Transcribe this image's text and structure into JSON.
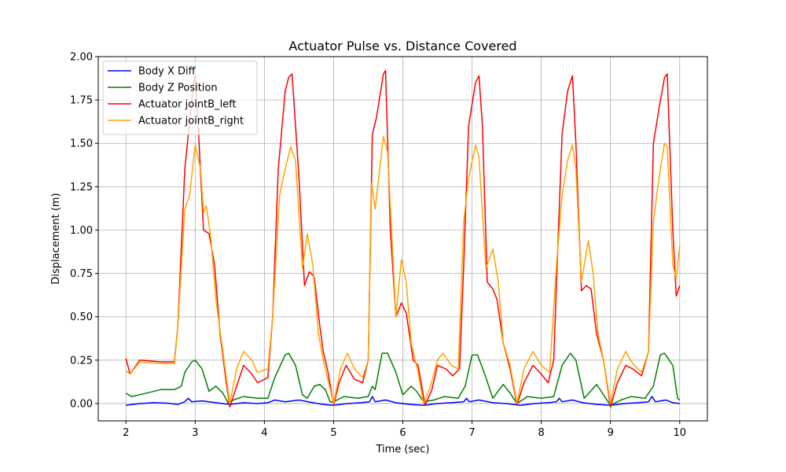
{
  "chart_data": {
    "type": "line",
    "title": "Actuator Pulse vs. Distance Covered",
    "xlabel": "Time (sec)",
    "ylabel": "Displacement (m)",
    "xlim": [
      1.6,
      10.4
    ],
    "ylim": [
      -0.1,
      2.0
    ],
    "xticks": [
      2,
      3,
      4,
      5,
      6,
      7,
      8,
      9,
      10
    ],
    "xtick_labels": [
      "2",
      "3",
      "4",
      "5",
      "6",
      "7",
      "8",
      "9",
      "10"
    ],
    "yticks": [
      0.0,
      0.25,
      0.5,
      0.75,
      1.0,
      1.25,
      1.5,
      1.75,
      2.0
    ],
    "ytick_labels": [
      "0.00",
      "0.25",
      "0.50",
      "0.75",
      "1.00",
      "1.25",
      "1.50",
      "1.75",
      "2.00"
    ],
    "grid": true,
    "legend_position": "top-left",
    "series": [
      {
        "name": "Body X Diff",
        "color": "#0000ff",
        "points": [
          [
            2.0,
            -0.01
          ],
          [
            2.2,
            0.0
          ],
          [
            2.4,
            0.005
          ],
          [
            2.6,
            0.002
          ],
          [
            2.75,
            -0.005
          ],
          [
            2.85,
            0.01
          ],
          [
            2.9,
            0.03
          ],
          [
            2.95,
            0.01
          ],
          [
            3.1,
            0.015
          ],
          [
            3.3,
            0.005
          ],
          [
            3.5,
            -0.005
          ],
          [
            3.7,
            0.005
          ],
          [
            3.9,
            0.0
          ],
          [
            4.05,
            0.005
          ],
          [
            4.15,
            0.02
          ],
          [
            4.3,
            0.01
          ],
          [
            4.5,
            0.02
          ],
          [
            4.7,
            0.005
          ],
          [
            4.85,
            -0.005
          ],
          [
            5.0,
            -0.01
          ],
          [
            5.2,
            0.0
          ],
          [
            5.4,
            0.005
          ],
          [
            5.52,
            0.01
          ],
          [
            5.56,
            0.04
          ],
          [
            5.6,
            0.01
          ],
          [
            5.75,
            0.02
          ],
          [
            5.9,
            0.005
          ],
          [
            6.1,
            -0.005
          ],
          [
            6.3,
            -0.01
          ],
          [
            6.5,
            0.0
          ],
          [
            6.7,
            0.005
          ],
          [
            6.88,
            0.01
          ],
          [
            6.92,
            0.03
          ],
          [
            6.96,
            0.01
          ],
          [
            7.1,
            0.02
          ],
          [
            7.3,
            0.005
          ],
          [
            7.5,
            0.0
          ],
          [
            7.7,
            -0.01
          ],
          [
            7.9,
            0.0
          ],
          [
            8.1,
            0.005
          ],
          [
            8.22,
            0.01
          ],
          [
            8.26,
            0.03
          ],
          [
            8.3,
            0.01
          ],
          [
            8.45,
            0.02
          ],
          [
            8.6,
            0.005
          ],
          [
            8.8,
            -0.005
          ],
          [
            9.0,
            -0.01
          ],
          [
            9.2,
            0.0
          ],
          [
            9.4,
            0.005
          ],
          [
            9.55,
            0.01
          ],
          [
            9.6,
            0.04
          ],
          [
            9.65,
            0.01
          ],
          [
            9.8,
            0.02
          ],
          [
            9.9,
            0.005
          ],
          [
            10.0,
            0.0
          ]
        ]
      },
      {
        "name": "Body Z Position",
        "color": "#008000",
        "points": [
          [
            2.0,
            0.06
          ],
          [
            2.08,
            0.04
          ],
          [
            2.3,
            0.06
          ],
          [
            2.5,
            0.08
          ],
          [
            2.7,
            0.08
          ],
          [
            2.8,
            0.1
          ],
          [
            2.85,
            0.18
          ],
          [
            2.95,
            0.24
          ],
          [
            3.0,
            0.25
          ],
          [
            3.1,
            0.2
          ],
          [
            3.2,
            0.07
          ],
          [
            3.3,
            0.1
          ],
          [
            3.4,
            0.06
          ],
          [
            3.48,
            0.0
          ],
          [
            3.55,
            0.02
          ],
          [
            3.7,
            0.04
          ],
          [
            3.9,
            0.03
          ],
          [
            4.05,
            0.03
          ],
          [
            4.15,
            0.15
          ],
          [
            4.3,
            0.28
          ],
          [
            4.35,
            0.29
          ],
          [
            4.45,
            0.22
          ],
          [
            4.55,
            0.05
          ],
          [
            4.62,
            0.03
          ],
          [
            4.72,
            0.1
          ],
          [
            4.8,
            0.11
          ],
          [
            4.88,
            0.08
          ],
          [
            4.95,
            0.01
          ],
          [
            5.0,
            0.01
          ],
          [
            5.15,
            0.04
          ],
          [
            5.35,
            0.03
          ],
          [
            5.5,
            0.04
          ],
          [
            5.56,
            0.1
          ],
          [
            5.6,
            0.08
          ],
          [
            5.7,
            0.29
          ],
          [
            5.78,
            0.29
          ],
          [
            5.9,
            0.18
          ],
          [
            6.0,
            0.05
          ],
          [
            6.12,
            0.1
          ],
          [
            6.2,
            0.07
          ],
          [
            6.3,
            0.01
          ],
          [
            6.45,
            0.02
          ],
          [
            6.6,
            0.04
          ],
          [
            6.8,
            0.03
          ],
          [
            6.9,
            0.1
          ],
          [
            7.0,
            0.28
          ],
          [
            7.08,
            0.28
          ],
          [
            7.2,
            0.15
          ],
          [
            7.3,
            0.03
          ],
          [
            7.45,
            0.11
          ],
          [
            7.55,
            0.06
          ],
          [
            7.65,
            0.0
          ],
          [
            7.8,
            0.04
          ],
          [
            8.0,
            0.03
          ],
          [
            8.18,
            0.04
          ],
          [
            8.3,
            0.22
          ],
          [
            8.42,
            0.29
          ],
          [
            8.5,
            0.25
          ],
          [
            8.62,
            0.03
          ],
          [
            8.8,
            0.11
          ],
          [
            8.9,
            0.05
          ],
          [
            9.0,
            -0.01
          ],
          [
            9.15,
            0.02
          ],
          [
            9.3,
            0.04
          ],
          [
            9.5,
            0.03
          ],
          [
            9.62,
            0.1
          ],
          [
            9.72,
            0.28
          ],
          [
            9.78,
            0.29
          ],
          [
            9.9,
            0.22
          ],
          [
            9.97,
            0.03
          ],
          [
            10.0,
            0.02
          ]
        ]
      },
      {
        "name": "Actuator jointB_left",
        "color": "#ff0000",
        "points": [
          [
            2.0,
            0.26
          ],
          [
            2.06,
            0.17
          ],
          [
            2.2,
            0.25
          ],
          [
            2.5,
            0.24
          ],
          [
            2.7,
            0.24
          ],
          [
            2.75,
            0.45
          ],
          [
            2.85,
            1.35
          ],
          [
            2.95,
            1.75
          ],
          [
            3.0,
            1.9
          ],
          [
            3.05,
            1.55
          ],
          [
            3.12,
            1.0
          ],
          [
            3.2,
            0.98
          ],
          [
            3.28,
            0.8
          ],
          [
            3.36,
            0.4
          ],
          [
            3.44,
            0.15
          ],
          [
            3.5,
            -0.02
          ],
          [
            3.6,
            0.1
          ],
          [
            3.7,
            0.22
          ],
          [
            3.82,
            0.17
          ],
          [
            3.9,
            0.12
          ],
          [
            4.05,
            0.15
          ],
          [
            4.12,
            0.5
          ],
          [
            4.2,
            1.35
          ],
          [
            4.3,
            1.8
          ],
          [
            4.35,
            1.88
          ],
          [
            4.4,
            1.9
          ],
          [
            4.5,
            1.3
          ],
          [
            4.58,
            0.68
          ],
          [
            4.65,
            0.76
          ],
          [
            4.72,
            0.73
          ],
          [
            4.8,
            0.45
          ],
          [
            4.85,
            0.3
          ],
          [
            4.92,
            0.18
          ],
          [
            5.0,
            -0.01
          ],
          [
            5.08,
            0.12
          ],
          [
            5.18,
            0.22
          ],
          [
            5.3,
            0.14
          ],
          [
            5.42,
            0.12
          ],
          [
            5.5,
            0.25
          ],
          [
            5.56,
            1.55
          ],
          [
            5.62,
            1.65
          ],
          [
            5.72,
            1.9
          ],
          [
            5.75,
            1.92
          ],
          [
            5.82,
            1.0
          ],
          [
            5.9,
            0.5
          ],
          [
            5.98,
            0.58
          ],
          [
            6.05,
            0.52
          ],
          [
            6.15,
            0.25
          ],
          [
            6.22,
            0.22
          ],
          [
            6.32,
            -0.01
          ],
          [
            6.42,
            0.08
          ],
          [
            6.5,
            0.22
          ],
          [
            6.62,
            0.2
          ],
          [
            6.72,
            0.16
          ],
          [
            6.82,
            0.2
          ],
          [
            6.88,
            0.8
          ],
          [
            6.95,
            1.6
          ],
          [
            7.05,
            1.85
          ],
          [
            7.1,
            1.89
          ],
          [
            7.15,
            1.6
          ],
          [
            7.22,
            0.7
          ],
          [
            7.3,
            0.66
          ],
          [
            7.36,
            0.6
          ],
          [
            7.45,
            0.35
          ],
          [
            7.55,
            0.2
          ],
          [
            7.65,
            -0.01
          ],
          [
            7.75,
            0.12
          ],
          [
            7.88,
            0.22
          ],
          [
            8.0,
            0.17
          ],
          [
            8.1,
            0.12
          ],
          [
            8.18,
            0.25
          ],
          [
            8.22,
            0.7
          ],
          [
            8.3,
            1.55
          ],
          [
            8.38,
            1.8
          ],
          [
            8.45,
            1.89
          ],
          [
            8.5,
            1.5
          ],
          [
            8.58,
            0.65
          ],
          [
            8.65,
            0.68
          ],
          [
            8.72,
            0.66
          ],
          [
            8.8,
            0.4
          ],
          [
            8.9,
            0.25
          ],
          [
            9.0,
            -0.02
          ],
          [
            9.1,
            0.12
          ],
          [
            9.22,
            0.22
          ],
          [
            9.32,
            0.2
          ],
          [
            9.45,
            0.16
          ],
          [
            9.55,
            0.3
          ],
          [
            9.62,
            1.5
          ],
          [
            9.7,
            1.7
          ],
          [
            9.78,
            1.88
          ],
          [
            9.82,
            1.9
          ],
          [
            9.9,
            1.0
          ],
          [
            9.95,
            0.62
          ],
          [
            10.0,
            0.68
          ]
        ]
      },
      {
        "name": "Actuator jointB_right",
        "color": "#ffa500",
        "points": [
          [
            2.0,
            0.19
          ],
          [
            2.06,
            0.17
          ],
          [
            2.2,
            0.24
          ],
          [
            2.5,
            0.23
          ],
          [
            2.7,
            0.23
          ],
          [
            2.75,
            0.45
          ],
          [
            2.85,
            1.12
          ],
          [
            2.92,
            1.2
          ],
          [
            3.0,
            1.49
          ],
          [
            3.08,
            1.35
          ],
          [
            3.12,
            1.1
          ],
          [
            3.16,
            1.14
          ],
          [
            3.22,
            0.98
          ],
          [
            3.3,
            0.6
          ],
          [
            3.4,
            0.3
          ],
          [
            3.5,
            0.0
          ],
          [
            3.6,
            0.2
          ],
          [
            3.7,
            0.3
          ],
          [
            3.82,
            0.25
          ],
          [
            3.9,
            0.18
          ],
          [
            4.05,
            0.2
          ],
          [
            4.12,
            0.5
          ],
          [
            4.22,
            1.2
          ],
          [
            4.3,
            1.35
          ],
          [
            4.38,
            1.48
          ],
          [
            4.45,
            1.4
          ],
          [
            4.55,
            0.78
          ],
          [
            4.62,
            0.98
          ],
          [
            4.7,
            0.8
          ],
          [
            4.78,
            0.4
          ],
          [
            4.85,
            0.25
          ],
          [
            5.0,
            0.0
          ],
          [
            5.1,
            0.2
          ],
          [
            5.2,
            0.29
          ],
          [
            5.3,
            0.2
          ],
          [
            5.42,
            0.15
          ],
          [
            5.5,
            0.25
          ],
          [
            5.55,
            1.27
          ],
          [
            5.6,
            1.12
          ],
          [
            5.65,
            1.3
          ],
          [
            5.72,
            1.54
          ],
          [
            5.78,
            1.45
          ],
          [
            5.85,
            0.9
          ],
          [
            5.9,
            0.5
          ],
          [
            5.98,
            0.83
          ],
          [
            6.05,
            0.7
          ],
          [
            6.12,
            0.35
          ],
          [
            6.22,
            0.18
          ],
          [
            6.3,
            0.0
          ],
          [
            6.4,
            0.1
          ],
          [
            6.5,
            0.25
          ],
          [
            6.58,
            0.29
          ],
          [
            6.7,
            0.22
          ],
          [
            6.8,
            0.2
          ],
          [
            6.88,
            1.05
          ],
          [
            6.95,
            1.3
          ],
          [
            7.05,
            1.49
          ],
          [
            7.1,
            1.42
          ],
          [
            7.2,
            0.78
          ],
          [
            7.3,
            0.89
          ],
          [
            7.38,
            0.7
          ],
          [
            7.45,
            0.35
          ],
          [
            7.55,
            0.22
          ],
          [
            7.65,
            0.0
          ],
          [
            7.75,
            0.2
          ],
          [
            7.88,
            0.3
          ],
          [
            8.0,
            0.22
          ],
          [
            8.12,
            0.18
          ],
          [
            8.22,
            0.8
          ],
          [
            8.3,
            1.2
          ],
          [
            8.38,
            1.4
          ],
          [
            8.45,
            1.49
          ],
          [
            8.5,
            1.35
          ],
          [
            8.58,
            0.7
          ],
          [
            8.68,
            0.94
          ],
          [
            8.75,
            0.75
          ],
          [
            8.82,
            0.4
          ],
          [
            8.9,
            0.25
          ],
          [
            9.0,
            0.0
          ],
          [
            9.1,
            0.2
          ],
          [
            9.22,
            0.3
          ],
          [
            9.32,
            0.23
          ],
          [
            9.45,
            0.18
          ],
          [
            9.55,
            0.3
          ],
          [
            9.62,
            1.05
          ],
          [
            9.7,
            1.3
          ],
          [
            9.78,
            1.5
          ],
          [
            9.82,
            1.48
          ],
          [
            9.9,
            0.8
          ],
          [
            9.95,
            0.72
          ],
          [
            10.0,
            0.91
          ]
        ]
      }
    ]
  }
}
